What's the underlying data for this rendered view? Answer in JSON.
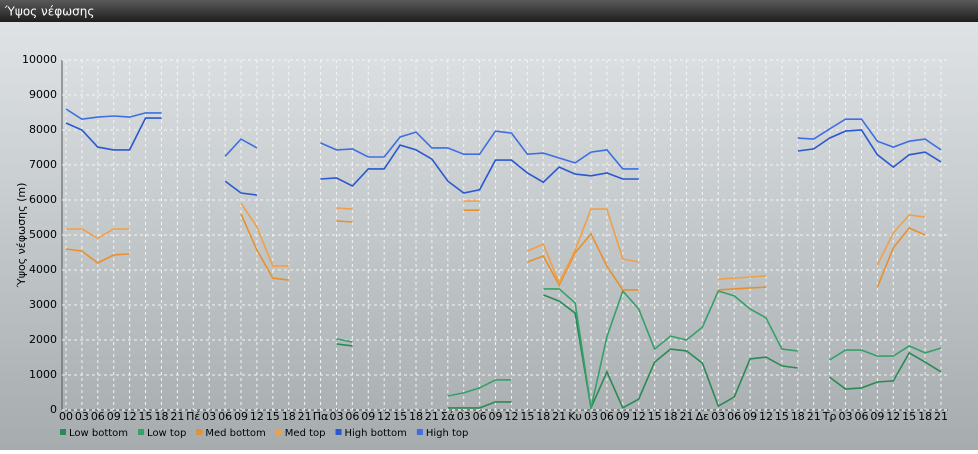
{
  "chart_data": {
    "type": "line",
    "title": "Ύψος νέφωσης",
    "ylabel": "Ύψος νέφωσης (m)",
    "categories": [
      "00",
      "03",
      "06",
      "09",
      "12",
      "15",
      "18",
      "21",
      "Πέ",
      "03",
      "06",
      "09",
      "12",
      "15",
      "18",
      "21",
      "Πα",
      "03",
      "06",
      "09",
      "12",
      "15",
      "18",
      "21",
      "Σά",
      "03",
      "06",
      "09",
      "12",
      "15",
      "18",
      "21",
      "Κυ",
      "03",
      "06",
      "09",
      "12",
      "15",
      "18",
      "21",
      "Δε",
      "03",
      "06",
      "09",
      "12",
      "15",
      "18",
      "21",
      "Τρ",
      "03",
      "06",
      "09",
      "12",
      "15",
      "18",
      "21"
    ],
    "ylim": [
      0,
      10000
    ],
    "yticks": [
      0,
      1000,
      2000,
      3000,
      4000,
      5000,
      6000,
      7000,
      8000,
      9000,
      10000
    ],
    "grid": true,
    "series": [
      {
        "name": "Low bottom",
        "color": "#2a8a55",
        "values": [
          null,
          null,
          null,
          null,
          null,
          null,
          null,
          null,
          null,
          null,
          null,
          null,
          null,
          null,
          null,
          null,
          null,
          1890,
          1830,
          null,
          null,
          null,
          null,
          null,
          60,
          60,
          60,
          230,
          230,
          null,
          3290,
          3110,
          2770,
          60,
          1090,
          60,
          310,
          1370,
          1740,
          1690,
          1340,
          110,
          370,
          1460,
          1510,
          1260,
          1200,
          null,
          940,
          600,
          630,
          800,
          830,
          1630,
          1370,
          1090
        ]
      },
      {
        "name": "Low top",
        "color": "#36a06a",
        "values": [
          null,
          null,
          null,
          null,
          null,
          null,
          null,
          null,
          null,
          null,
          null,
          null,
          null,
          null,
          null,
          null,
          null,
          2030,
          1940,
          null,
          null,
          null,
          null,
          null,
          400,
          490,
          630,
          860,
          860,
          null,
          3460,
          3460,
          3060,
          60,
          2090,
          3400,
          2890,
          1740,
          2110,
          2000,
          2370,
          3400,
          3260,
          2890,
          2630,
          1740,
          1690,
          null,
          1430,
          1710,
          1710,
          1540,
          1540,
          1830,
          1630,
          1770
        ]
      },
      {
        "name": "Med bottom",
        "color": "#e8902e",
        "values": [
          4600,
          4540,
          4200,
          4430,
          4460,
          null,
          null,
          null,
          null,
          null,
          null,
          5600,
          4570,
          3770,
          3710,
          null,
          null,
          5400,
          5370,
          null,
          null,
          null,
          null,
          null,
          null,
          5710,
          5710,
          null,
          null,
          4230,
          4400,
          3570,
          4490,
          5030,
          4110,
          3430,
          3430,
          null,
          null,
          null,
          null,
          3430,
          3460,
          3490,
          3510,
          null,
          null,
          null,
          null,
          null,
          null,
          3510,
          4630,
          5200,
          5000,
          null
        ]
      },
      {
        "name": "Med top",
        "color": "#f0a048",
        "values": [
          5170,
          5170,
          4910,
          5170,
          5170,
          null,
          null,
          null,
          null,
          null,
          null,
          5910,
          5230,
          4110,
          4110,
          null,
          null,
          5770,
          5740,
          null,
          null,
          null,
          null,
          null,
          null,
          5970,
          5970,
          null,
          null,
          4540,
          4740,
          3630,
          4570,
          5740,
          5740,
          4310,
          4230,
          null,
          null,
          null,
          null,
          3740,
          3770,
          3800,
          3830,
          null,
          null,
          null,
          null,
          null,
          null,
          4140,
          5060,
          5570,
          5510,
          null
        ]
      },
      {
        "name": "High bottom",
        "color": "#2a58d0",
        "values": [
          8200,
          8000,
          7510,
          7430,
          7430,
          8340,
          8340,
          null,
          null,
          null,
          6540,
          6200,
          6140,
          null,
          null,
          null,
          6600,
          6630,
          6400,
          6890,
          6890,
          7570,
          7430,
          7170,
          6540,
          6200,
          6290,
          7140,
          7140,
          6770,
          6510,
          6940,
          6740,
          6690,
          6770,
          6600,
          6600,
          null,
          null,
          null,
          null,
          null,
          null,
          null,
          null,
          null,
          7400,
          7460,
          7770,
          7970,
          8000,
          7290,
          6940,
          7290,
          7370,
          7090
        ]
      },
      {
        "name": "High top",
        "color": "#3e6ee2",
        "values": [
          8600,
          8310,
          8370,
          8400,
          8370,
          8490,
          8490,
          null,
          null,
          null,
          7250,
          7740,
          7490,
          null,
          null,
          null,
          7630,
          7430,
          7460,
          7230,
          7230,
          7800,
          7940,
          7490,
          7490,
          7310,
          7310,
          7970,
          7910,
          7310,
          7340,
          7200,
          7060,
          7370,
          7430,
          6890,
          6890,
          null,
          null,
          null,
          null,
          null,
          null,
          null,
          null,
          null,
          7770,
          7740,
          8030,
          8310,
          8310,
          7680,
          7510,
          7680,
          7740,
          7430
        ]
      }
    ]
  }
}
